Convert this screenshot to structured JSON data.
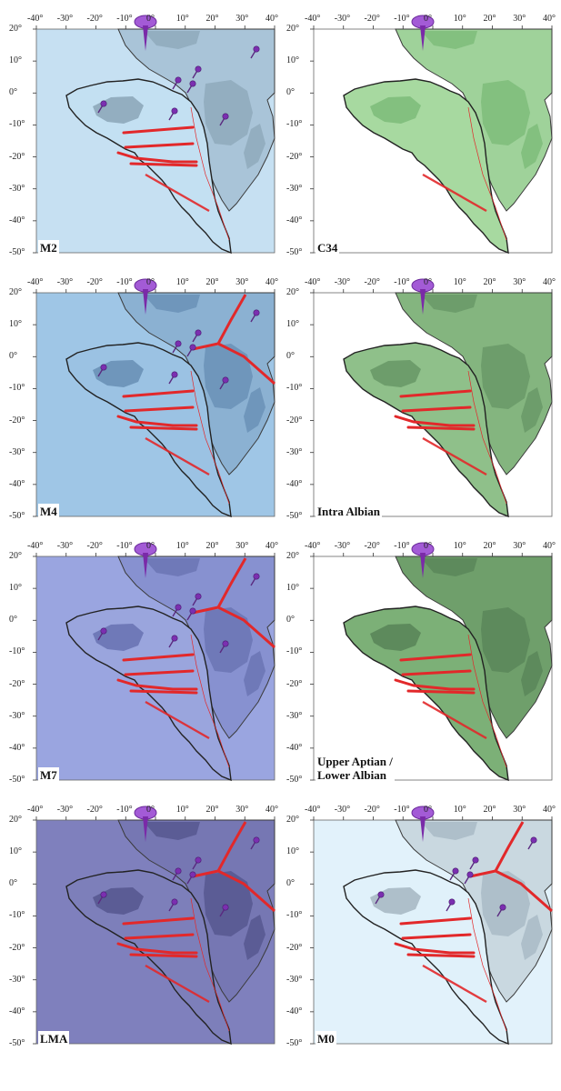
{
  "lon_ticks": [
    "-40°",
    "-30°",
    "-20°",
    "-10°",
    "0°",
    "10°",
    "20°",
    "30°",
    "40°"
  ],
  "lat_ticks": [
    "20°",
    "10°",
    "0°",
    "-10°",
    "-20°",
    "-30°",
    "-40°",
    "-50°"
  ],
  "panels": [
    {
      "id": "m2",
      "title_lines": [
        "M2"
      ],
      "style": {
        "ocean": "#c6e0f2",
        "sa": "#c3e0f2",
        "af": "#a9c4d8",
        "craton": "#93aec0"
      },
      "features": {
        "pins": true,
        "ridges": true,
        "africa_boundary": false
      }
    },
    {
      "id": "c34",
      "title_lines": [
        "C34"
      ],
      "style": {
        "ocean": "#ffffff",
        "sa": "#a7d9a0",
        "af": "#9fd29a",
        "craton": "#83c07f"
      },
      "features": {
        "pins": false,
        "ridges": false,
        "africa_boundary": false
      }
    },
    {
      "id": "m4",
      "title_lines": [
        "M4"
      ],
      "style": {
        "ocean": "#9fc6e6",
        "sa": "#9bc2e3",
        "af": "#8bb1d2",
        "craton": "#6f96bb"
      },
      "features": {
        "pins": true,
        "ridges": true,
        "africa_boundary": true
      }
    },
    {
      "id": "intra-albian",
      "title_lines": [
        "Intra Albian"
      ],
      "style": {
        "ocean": "#ffffff",
        "sa": "#8fc08a",
        "af": "#84b57f",
        "craton": "#6d9d6b"
      },
      "features": {
        "pins": false,
        "ridges": true,
        "africa_boundary": false
      }
    },
    {
      "id": "m7",
      "title_lines": [
        "M7"
      ],
      "style": {
        "ocean": "#9aa5e0",
        "sa": "#9aa5dd",
        "af": "#8791d0",
        "craton": "#6f79b8"
      },
      "features": {
        "pins": true,
        "ridges": true,
        "africa_boundary": true
      }
    },
    {
      "id": "upper-aptian",
      "title_lines": [
        "Upper Aptian /",
        "Lower Albian"
      ],
      "style": {
        "ocean": "#ffffff",
        "sa": "#7cb077",
        "af": "#6f9f6b",
        "craton": "#5d8a5c"
      },
      "features": {
        "pins": false,
        "ridges": true,
        "africa_boundary": false
      }
    },
    {
      "id": "lma",
      "title_lines": [
        "LMA"
      ],
      "style": {
        "ocean": "#7f80bd",
        "sa": "#7d7fba",
        "af": "#7677b3",
        "craton": "#5b5c95"
      },
      "features": {
        "pins": true,
        "ridges": true,
        "africa_boundary": true
      }
    },
    {
      "id": "m0",
      "title_lines": [
        "M0"
      ],
      "style": {
        "ocean": "#e2f2fb",
        "sa": "#e0f1fa",
        "af": "#c9d8e0",
        "craton": "#aebfca"
      },
      "features": {
        "pins": true,
        "ridges": true,
        "africa_boundary": true
      }
    }
  ],
  "colors": {
    "ridge": "#e2282a",
    "outline": "#111111",
    "pin": "#7b2fb0",
    "pin_light": "#a35bd6"
  }
}
